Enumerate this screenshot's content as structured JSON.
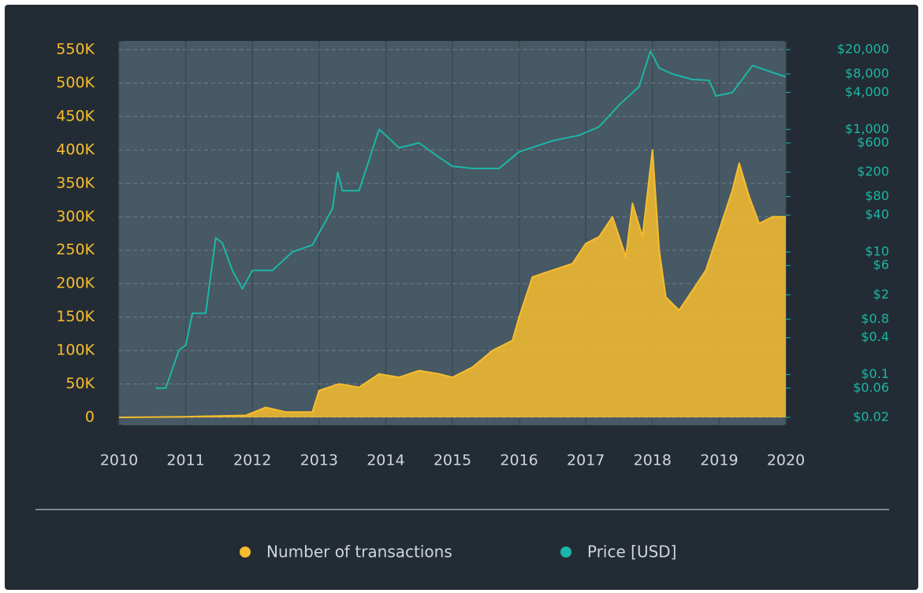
{
  "chart_data": {
    "type": "line",
    "xticks": [
      2010,
      2011,
      2012,
      2013,
      2014,
      2015,
      2016,
      2017,
      2018,
      2019,
      2020
    ],
    "xlim": [
      2010,
      2020
    ],
    "ylim": [
      0,
      550000
    ],
    "yticks": [
      0,
      {
        "value": 50000,
        "label": "50K"
      },
      {
        "value": 100000,
        "label": "100K"
      },
      {
        "value": 150000,
        "label": "150K"
      },
      {
        "value": 200000,
        "label": "200K"
      },
      {
        "value": 250000,
        "label": "250K"
      },
      {
        "value": 300000,
        "label": "300K"
      },
      {
        "value": 350000,
        "label": "350K"
      },
      {
        "value": 400000,
        "label": "400K"
      },
      {
        "value": 450000,
        "label": "450K"
      },
      {
        "value": 500000,
        "label": "500K"
      },
      {
        "value": 550000,
        "label": "550K"
      }
    ],
    "y2lim": [
      0.02,
      20000
    ],
    "y2log": true,
    "y2ticks": [
      {
        "value": 0.02,
        "label": "$0.02"
      },
      {
        "value": 0.06,
        "label": "$0.06"
      },
      {
        "value": 0.1,
        "label": "$0.1"
      },
      {
        "value": 0.4,
        "label": "$0.4"
      },
      {
        "value": 0.8,
        "label": "$0.8"
      },
      {
        "value": 2,
        "label": "$2"
      },
      {
        "value": 6,
        "label": "$6"
      },
      {
        "value": 10,
        "label": "$10"
      },
      {
        "value": 40,
        "label": "$40"
      },
      {
        "value": 80,
        "label": "$80"
      },
      {
        "value": 200,
        "label": "$200"
      },
      {
        "value": 600,
        "label": "$600"
      },
      {
        "value": 1000,
        "label": "$1,000"
      },
      {
        "value": 4000,
        "label": "$4,000"
      },
      {
        "value": 8000,
        "label": "$8,000"
      },
      {
        "value": 20000,
        "label": "$20,000"
      }
    ],
    "grid": true,
    "legend": "bottom",
    "series": [
      {
        "name": "Number of transactions",
        "color": "#f8bd2e",
        "x": [
          2010.0,
          2011.0,
          2011.9,
          2012.2,
          2012.5,
          2012.9,
          2013.0,
          2013.3,
          2013.6,
          2013.9,
          2014.2,
          2014.5,
          2014.8,
          2015.0,
          2015.3,
          2015.6,
          2015.9,
          2016.0,
          2016.2,
          2016.5,
          2016.8,
          2017.0,
          2017.2,
          2017.4,
          2017.6,
          2017.7,
          2017.85,
          2018.0,
          2018.1,
          2018.2,
          2018.4,
          2018.6,
          2018.8,
          2019.0,
          2019.2,
          2019.3,
          2019.45,
          2019.6,
          2019.8,
          2020.0
        ],
        "values": [
          0,
          1000,
          3000,
          15000,
          8000,
          8000,
          40000,
          50000,
          45000,
          65000,
          60000,
          70000,
          65000,
          60000,
          75000,
          100000,
          115000,
          150000,
          210000,
          220000,
          230000,
          260000,
          270000,
          300000,
          240000,
          320000,
          270000,
          400000,
          250000,
          180000,
          160000,
          190000,
          220000,
          280000,
          340000,
          380000,
          330000,
          290000,
          300000,
          300000
        ]
      },
      {
        "name": "Price [USD]",
        "color": "#1db6a7",
        "axis": "y2",
        "x": [
          2010.55,
          2010.7,
          2010.9,
          2011.0,
          2011.1,
          2011.3,
          2011.45,
          2011.55,
          2011.7,
          2011.85,
          2012.0,
          2012.3,
          2012.6,
          2012.9,
          2013.2,
          2013.28,
          2013.35,
          2013.6,
          2013.9,
          2014.0,
          2014.2,
          2014.5,
          2014.8,
          2015.0,
          2015.3,
          2015.7,
          2016.0,
          2016.5,
          2016.9,
          2017.2,
          2017.5,
          2017.8,
          2017.97,
          2018.1,
          2018.3,
          2018.6,
          2018.85,
          2018.95,
          2019.2,
          2019.5,
          2019.8,
          2020.0
        ],
        "values": [
          0.06,
          0.06,
          0.25,
          0.3,
          1,
          1,
          17,
          14,
          5,
          2.5,
          5,
          5,
          10,
          13,
          50,
          200,
          100,
          100,
          1000,
          800,
          500,
          600,
          350,
          250,
          230,
          230,
          430,
          650,
          800,
          1100,
          2500,
          5000,
          19000,
          10000,
          8000,
          6500,
          6300,
          3500,
          4000,
          11000,
          8500,
          7200
        ]
      }
    ]
  }
}
